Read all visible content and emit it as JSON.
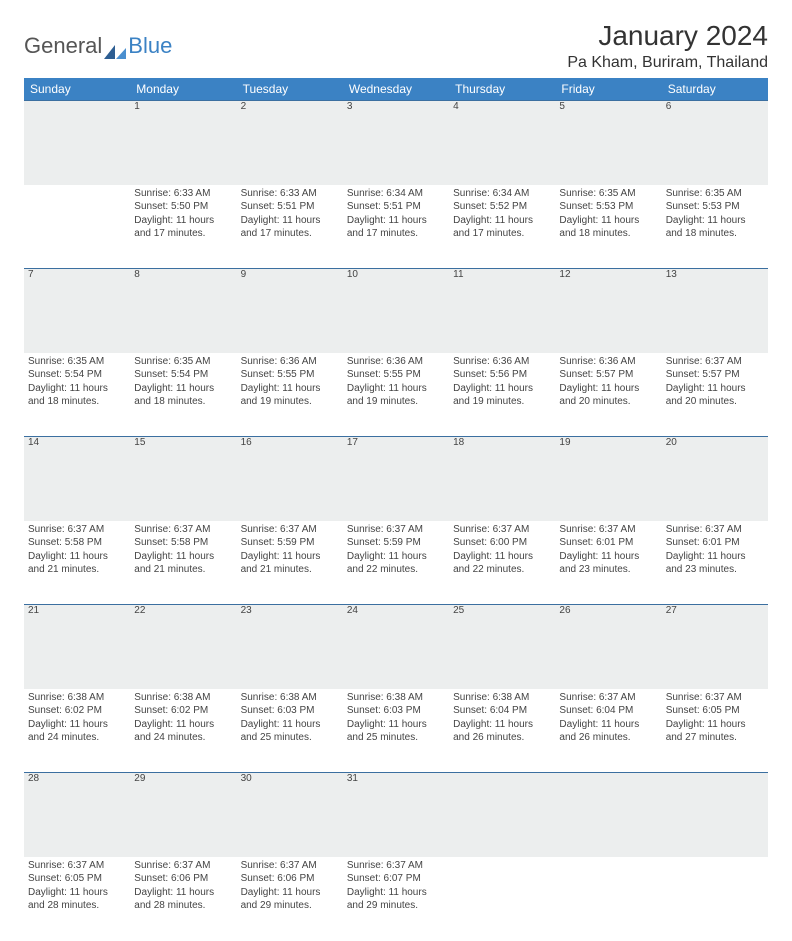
{
  "brand": {
    "general": "General",
    "blue": "Blue"
  },
  "title": "January 2024",
  "location": "Pa Kham, Buriram, Thailand",
  "colors": {
    "header_bg": "#3b82c4",
    "header_text": "#ffffff",
    "daynum_bg": "#eceeee",
    "border": "#3b6fa0",
    "text": "#444444"
  },
  "weekdays": [
    "Sunday",
    "Monday",
    "Tuesday",
    "Wednesday",
    "Thursday",
    "Friday",
    "Saturday"
  ],
  "weeks": [
    {
      "nums": [
        "",
        "1",
        "2",
        "3",
        "4",
        "5",
        "6"
      ],
      "cells": [
        null,
        {
          "sunrise": "Sunrise: 6:33 AM",
          "sunset": "Sunset: 5:50 PM",
          "day1": "Daylight: 11 hours",
          "day2": "and 17 minutes."
        },
        {
          "sunrise": "Sunrise: 6:33 AM",
          "sunset": "Sunset: 5:51 PM",
          "day1": "Daylight: 11 hours",
          "day2": "and 17 minutes."
        },
        {
          "sunrise": "Sunrise: 6:34 AM",
          "sunset": "Sunset: 5:51 PM",
          "day1": "Daylight: 11 hours",
          "day2": "and 17 minutes."
        },
        {
          "sunrise": "Sunrise: 6:34 AM",
          "sunset": "Sunset: 5:52 PM",
          "day1": "Daylight: 11 hours",
          "day2": "and 17 minutes."
        },
        {
          "sunrise": "Sunrise: 6:35 AM",
          "sunset": "Sunset: 5:53 PM",
          "day1": "Daylight: 11 hours",
          "day2": "and 18 minutes."
        },
        {
          "sunrise": "Sunrise: 6:35 AM",
          "sunset": "Sunset: 5:53 PM",
          "day1": "Daylight: 11 hours",
          "day2": "and 18 minutes."
        }
      ]
    },
    {
      "nums": [
        "7",
        "8",
        "9",
        "10",
        "11",
        "12",
        "13"
      ],
      "cells": [
        {
          "sunrise": "Sunrise: 6:35 AM",
          "sunset": "Sunset: 5:54 PM",
          "day1": "Daylight: 11 hours",
          "day2": "and 18 minutes."
        },
        {
          "sunrise": "Sunrise: 6:35 AM",
          "sunset": "Sunset: 5:54 PM",
          "day1": "Daylight: 11 hours",
          "day2": "and 18 minutes."
        },
        {
          "sunrise": "Sunrise: 6:36 AM",
          "sunset": "Sunset: 5:55 PM",
          "day1": "Daylight: 11 hours",
          "day2": "and 19 minutes."
        },
        {
          "sunrise": "Sunrise: 6:36 AM",
          "sunset": "Sunset: 5:55 PM",
          "day1": "Daylight: 11 hours",
          "day2": "and 19 minutes."
        },
        {
          "sunrise": "Sunrise: 6:36 AM",
          "sunset": "Sunset: 5:56 PM",
          "day1": "Daylight: 11 hours",
          "day2": "and 19 minutes."
        },
        {
          "sunrise": "Sunrise: 6:36 AM",
          "sunset": "Sunset: 5:57 PM",
          "day1": "Daylight: 11 hours",
          "day2": "and 20 minutes."
        },
        {
          "sunrise": "Sunrise: 6:37 AM",
          "sunset": "Sunset: 5:57 PM",
          "day1": "Daylight: 11 hours",
          "day2": "and 20 minutes."
        }
      ]
    },
    {
      "nums": [
        "14",
        "15",
        "16",
        "17",
        "18",
        "19",
        "20"
      ],
      "cells": [
        {
          "sunrise": "Sunrise: 6:37 AM",
          "sunset": "Sunset: 5:58 PM",
          "day1": "Daylight: 11 hours",
          "day2": "and 21 minutes."
        },
        {
          "sunrise": "Sunrise: 6:37 AM",
          "sunset": "Sunset: 5:58 PM",
          "day1": "Daylight: 11 hours",
          "day2": "and 21 minutes."
        },
        {
          "sunrise": "Sunrise: 6:37 AM",
          "sunset": "Sunset: 5:59 PM",
          "day1": "Daylight: 11 hours",
          "day2": "and 21 minutes."
        },
        {
          "sunrise": "Sunrise: 6:37 AM",
          "sunset": "Sunset: 5:59 PM",
          "day1": "Daylight: 11 hours",
          "day2": "and 22 minutes."
        },
        {
          "sunrise": "Sunrise: 6:37 AM",
          "sunset": "Sunset: 6:00 PM",
          "day1": "Daylight: 11 hours",
          "day2": "and 22 minutes."
        },
        {
          "sunrise": "Sunrise: 6:37 AM",
          "sunset": "Sunset: 6:01 PM",
          "day1": "Daylight: 11 hours",
          "day2": "and 23 minutes."
        },
        {
          "sunrise": "Sunrise: 6:37 AM",
          "sunset": "Sunset: 6:01 PM",
          "day1": "Daylight: 11 hours",
          "day2": "and 23 minutes."
        }
      ]
    },
    {
      "nums": [
        "21",
        "22",
        "23",
        "24",
        "25",
        "26",
        "27"
      ],
      "cells": [
        {
          "sunrise": "Sunrise: 6:38 AM",
          "sunset": "Sunset: 6:02 PM",
          "day1": "Daylight: 11 hours",
          "day2": "and 24 minutes."
        },
        {
          "sunrise": "Sunrise: 6:38 AM",
          "sunset": "Sunset: 6:02 PM",
          "day1": "Daylight: 11 hours",
          "day2": "and 24 minutes."
        },
        {
          "sunrise": "Sunrise: 6:38 AM",
          "sunset": "Sunset: 6:03 PM",
          "day1": "Daylight: 11 hours",
          "day2": "and 25 minutes."
        },
        {
          "sunrise": "Sunrise: 6:38 AM",
          "sunset": "Sunset: 6:03 PM",
          "day1": "Daylight: 11 hours",
          "day2": "and 25 minutes."
        },
        {
          "sunrise": "Sunrise: 6:38 AM",
          "sunset": "Sunset: 6:04 PM",
          "day1": "Daylight: 11 hours",
          "day2": "and 26 minutes."
        },
        {
          "sunrise": "Sunrise: 6:37 AM",
          "sunset": "Sunset: 6:04 PM",
          "day1": "Daylight: 11 hours",
          "day2": "and 26 minutes."
        },
        {
          "sunrise": "Sunrise: 6:37 AM",
          "sunset": "Sunset: 6:05 PM",
          "day1": "Daylight: 11 hours",
          "day2": "and 27 minutes."
        }
      ]
    },
    {
      "nums": [
        "28",
        "29",
        "30",
        "31",
        "",
        "",
        ""
      ],
      "cells": [
        {
          "sunrise": "Sunrise: 6:37 AM",
          "sunset": "Sunset: 6:05 PM",
          "day1": "Daylight: 11 hours",
          "day2": "and 28 minutes."
        },
        {
          "sunrise": "Sunrise: 6:37 AM",
          "sunset": "Sunset: 6:06 PM",
          "day1": "Daylight: 11 hours",
          "day2": "and 28 minutes."
        },
        {
          "sunrise": "Sunrise: 6:37 AM",
          "sunset": "Sunset: 6:06 PM",
          "day1": "Daylight: 11 hours",
          "day2": "and 29 minutes."
        },
        {
          "sunrise": "Sunrise: 6:37 AM",
          "sunset": "Sunset: 6:07 PM",
          "day1": "Daylight: 11 hours",
          "day2": "and 29 minutes."
        },
        null,
        null,
        null
      ]
    }
  ]
}
